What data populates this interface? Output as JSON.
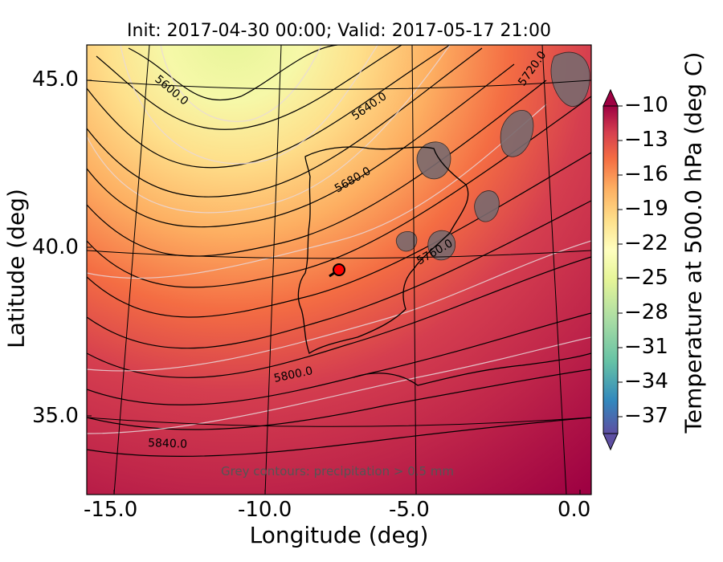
{
  "title": "Init: 2017-04-30 00:00; Valid: 2017-05-17 21:00",
  "xlabel": "Longitude (deg)",
  "ylabel": "Latitude (deg)",
  "x_ticks": [
    "-15.0",
    "-10.0",
    "-5.0",
    "0.0"
  ],
  "y_ticks": [
    "45.0",
    "40.0",
    "35.0"
  ],
  "colorbar": {
    "label": "Temperature at 500.0 hPa (deg C)",
    "ticks": [
      "−10",
      "−13",
      "−16",
      "−19",
      "−22",
      "−25",
      "−28",
      "−31",
      "−34",
      "−37"
    ],
    "colormap": "Spectral_r",
    "range": [
      -38,
      -9
    ]
  },
  "contour_labels": [
    "5600.0",
    "5640.0",
    "5680.0",
    "5720.0",
    "5760.0",
    "5800.0",
    "5840.0"
  ],
  "annotation": "Grey contours: precipitation > 0.5 mm",
  "marker": {
    "color": "#ff0000",
    "lon": -7.6,
    "lat": 39.3
  },
  "chart_data": {
    "type": "heatmap",
    "title": "Init: 2017-04-30 00:00; Valid: 2017-05-17 21:00",
    "xlabel": "Longitude (deg)",
    "ylabel": "Latitude (deg)",
    "x_ticks": [
      -15.0,
      -10.0,
      -5.0,
      0.0
    ],
    "y_ticks": [
      45.0,
      40.0,
      35.0
    ],
    "xlim": [
      -16,
      0
    ],
    "ylim": [
      33,
      46
    ],
    "field": "Temperature at 500.0 hPa (deg C)",
    "color_range": [
      -38,
      -9
    ],
    "geopotential_contours_m": [
      5600,
      5640,
      5680,
      5720,
      5760,
      5800,
      5840
    ],
    "cold_core_temp": -26,
    "cold_core_location": [
      -12.5,
      45.5
    ],
    "warm_side_temp": -10,
    "warm_side_location": [
      -2,
      35
    ]
  }
}
